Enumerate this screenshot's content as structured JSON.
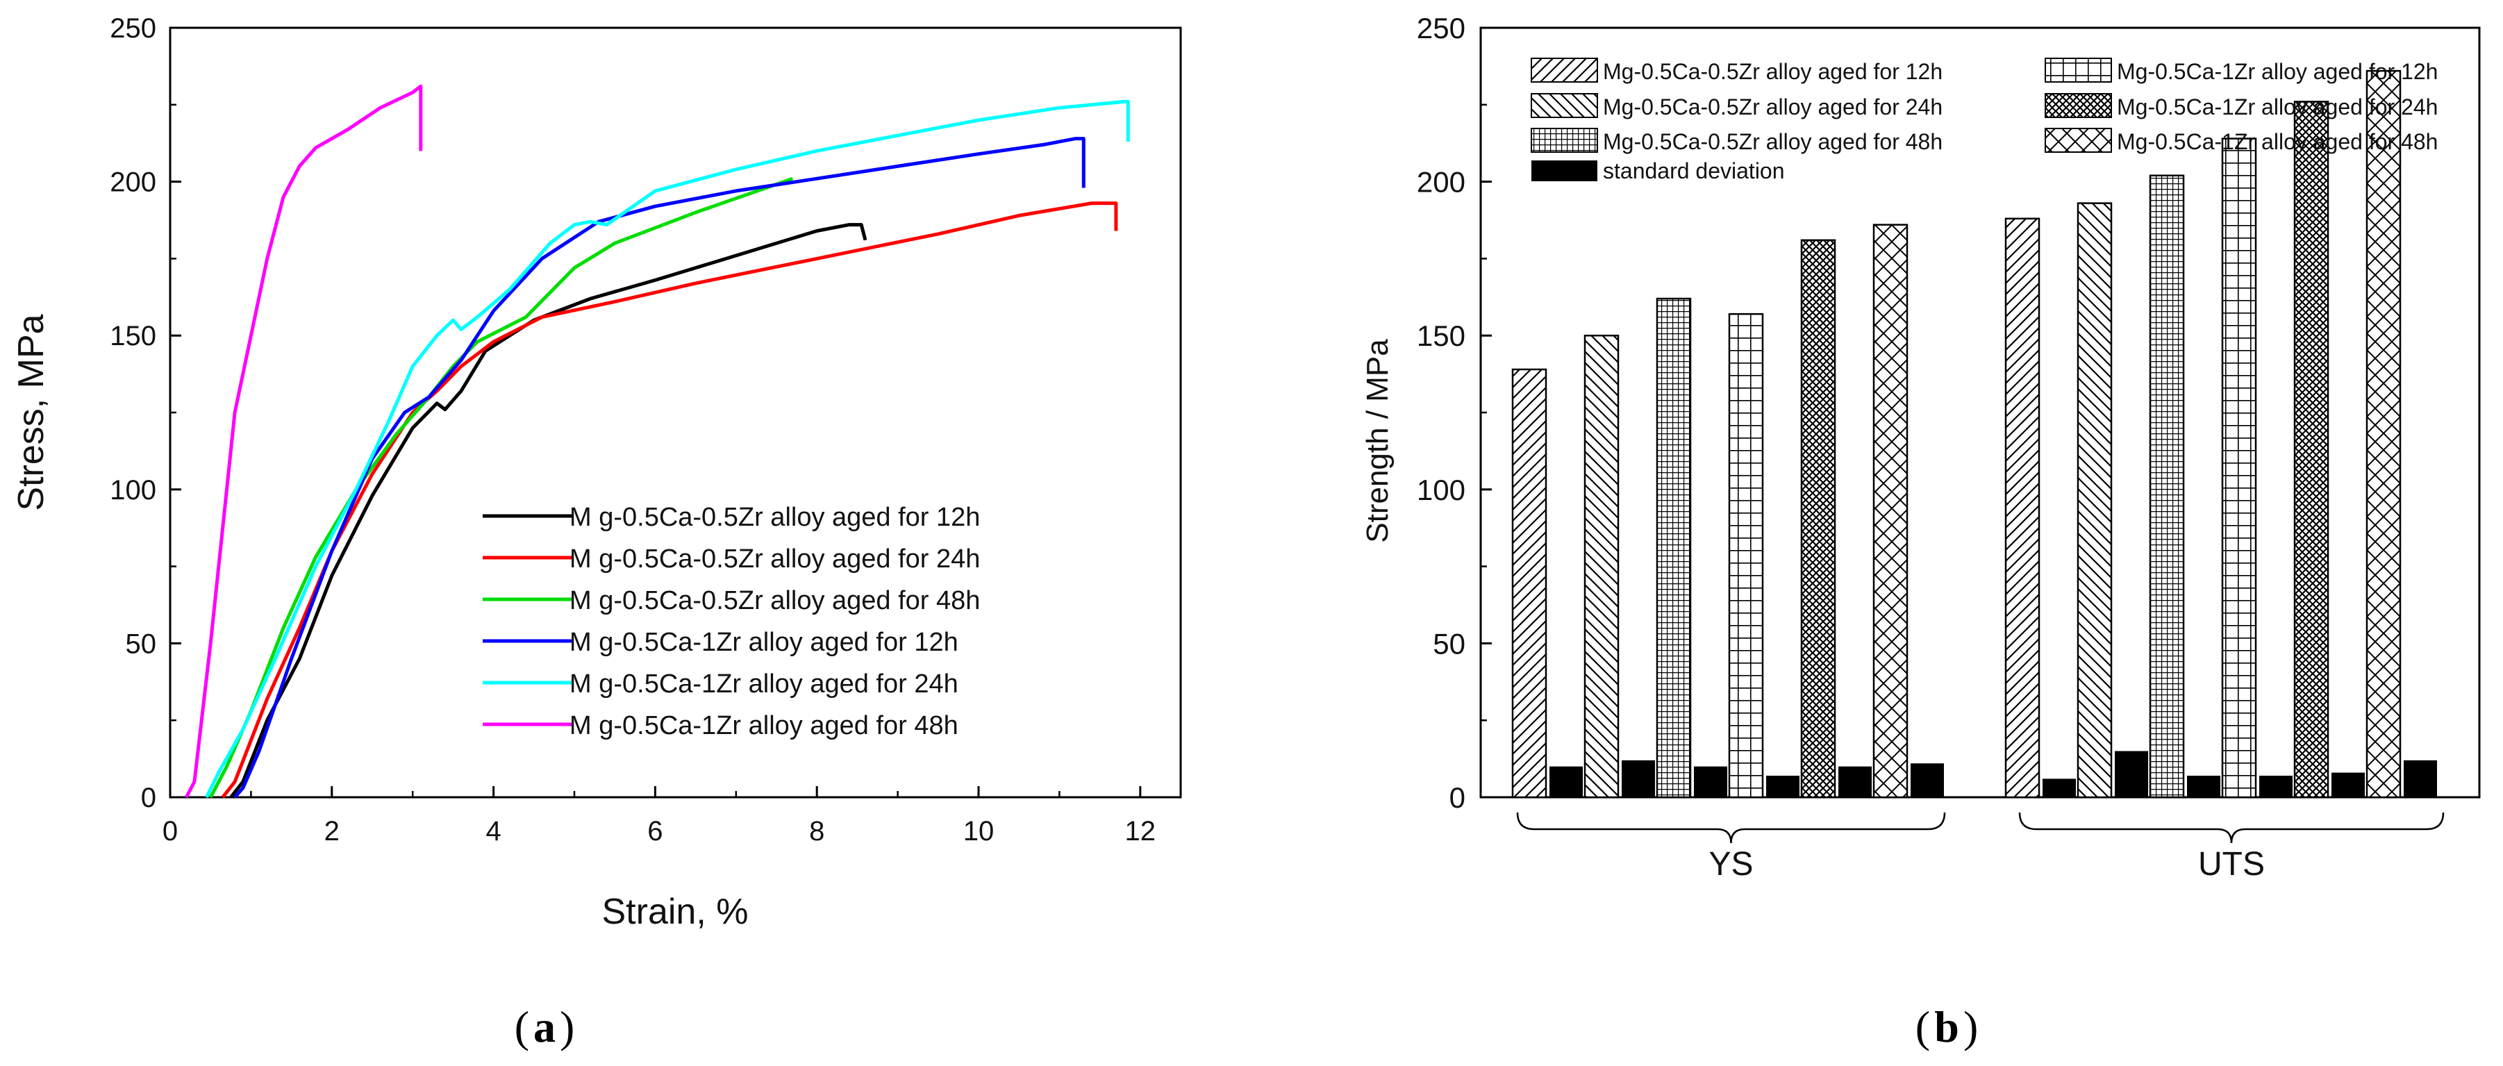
{
  "chart_data": [
    {
      "type": "line",
      "panel": "a",
      "xlabel": "Strain, %",
      "ylabel": "Stress, MPa",
      "xlim": [
        0,
        12.5
      ],
      "ylim": [
        0,
        250
      ],
      "xticks": [
        0,
        2,
        4,
        6,
        8,
        10,
        12
      ],
      "yticks": [
        0,
        50,
        100,
        150,
        200,
        250
      ],
      "legend_position": "bottom-right",
      "series": [
        {
          "name": "M g-0.5Ca-0.5Zr alloy aged for 12h",
          "color": "#000000",
          "points": [
            [
              0.75,
              0
            ],
            [
              0.9,
              5
            ],
            [
              1.2,
              25
            ],
            [
              1.6,
              45
            ],
            [
              2.0,
              72
            ],
            [
              2.5,
              98
            ],
            [
              3.0,
              120
            ],
            [
              3.3,
              128
            ],
            [
              3.4,
              126
            ],
            [
              3.6,
              132
            ],
            [
              3.9,
              145
            ],
            [
              4.5,
              155
            ],
            [
              5.2,
              162
            ],
            [
              6.0,
              168
            ],
            [
              7.0,
              176
            ],
            [
              8.0,
              184
            ],
            [
              8.4,
              186
            ],
            [
              8.55,
              186
            ],
            [
              8.6,
              181
            ]
          ]
        },
        {
          "name": "M g-0.5Ca-0.5Zr alloy aged for 24h",
          "color": "#ff0000",
          "points": [
            [
              0.65,
              0
            ],
            [
              0.8,
              5
            ],
            [
              1.2,
              32
            ],
            [
              1.6,
              55
            ],
            [
              2.0,
              80
            ],
            [
              2.5,
              105
            ],
            [
              3.0,
              125
            ],
            [
              3.3,
              132
            ],
            [
              3.6,
              140
            ],
            [
              4.0,
              148
            ],
            [
              4.6,
              156
            ],
            [
              5.5,
              161
            ],
            [
              6.5,
              167
            ],
            [
              8.0,
              175
            ],
            [
              9.5,
              183
            ],
            [
              10.5,
              189
            ],
            [
              11.4,
              193
            ],
            [
              11.7,
              193
            ],
            [
              11.7,
              184
            ]
          ]
        },
        {
          "name": "M g-0.5Ca-0.5Zr alloy aged for 48h",
          "color": "#00dd00",
          "points": [
            [
              0.5,
              0
            ],
            [
              0.7,
              10
            ],
            [
              1.0,
              28
            ],
            [
              1.4,
              55
            ],
            [
              1.8,
              78
            ],
            [
              2.3,
              100
            ],
            [
              2.8,
              118
            ],
            [
              3.2,
              130
            ],
            [
              3.5,
              140
            ],
            [
              3.8,
              148
            ],
            [
              4.4,
              156
            ],
            [
              5.0,
              172
            ],
            [
              5.5,
              180
            ],
            [
              6.5,
              190
            ],
            [
              7.7,
              201
            ]
          ]
        },
        {
          "name": "M g-0.5Ca-1Zr alloy aged for 12h",
          "color": "#0000ff",
          "points": [
            [
              0.8,
              0
            ],
            [
              0.9,
              3
            ],
            [
              1.1,
              15
            ],
            [
              1.5,
              45
            ],
            [
              2.0,
              80
            ],
            [
              2.5,
              110
            ],
            [
              2.9,
              125
            ],
            [
              3.2,
              130
            ],
            [
              3.6,
              142
            ],
            [
              4.0,
              158
            ],
            [
              4.6,
              175
            ],
            [
              5.3,
              187
            ],
            [
              6.0,
              192
            ],
            [
              7.0,
              197
            ],
            [
              8.0,
              201
            ],
            [
              9.0,
              205
            ],
            [
              10.0,
              209
            ],
            [
              10.8,
              212
            ],
            [
              11.2,
              214
            ],
            [
              11.3,
              214
            ],
            [
              11.3,
              198
            ]
          ]
        },
        {
          "name": "M g-0.5Ca-1Zr alloy aged for 24h",
          "color": "#00ffff",
          "points": [
            [
              0.45,
              0
            ],
            [
              0.6,
              8
            ],
            [
              0.9,
              22
            ],
            [
              1.3,
              45
            ],
            [
              1.8,
              75
            ],
            [
              2.3,
              100
            ],
            [
              2.7,
              122
            ],
            [
              3.0,
              140
            ],
            [
              3.3,
              150
            ],
            [
              3.5,
              155
            ],
            [
              3.6,
              152
            ],
            [
              3.8,
              156
            ],
            [
              4.2,
              165
            ],
            [
              4.7,
              180
            ],
            [
              5.0,
              186
            ],
            [
              5.2,
              187
            ],
            [
              5.4,
              186
            ],
            [
              6.0,
              197
            ],
            [
              7.0,
              204
            ],
            [
              8.0,
              210
            ],
            [
              9.0,
              215
            ],
            [
              10.0,
              220
            ],
            [
              11.0,
              224
            ],
            [
              11.8,
              226
            ],
            [
              11.85,
              226
            ],
            [
              11.85,
              213
            ]
          ]
        },
        {
          "name": "M g-0.5Ca-1Zr alloy aged for 48h",
          "color": "#ff00ff",
          "points": [
            [
              0.2,
              0
            ],
            [
              0.3,
              5
            ],
            [
              0.5,
              50
            ],
            [
              0.7,
              100
            ],
            [
              0.8,
              125
            ],
            [
              1.0,
              150
            ],
            [
              1.2,
              175
            ],
            [
              1.4,
              195
            ],
            [
              1.6,
              205
            ],
            [
              1.8,
              211
            ],
            [
              2.2,
              217
            ],
            [
              2.6,
              224
            ],
            [
              3.0,
              229
            ],
            [
              3.1,
              231
            ],
            [
              3.1,
              210
            ]
          ]
        }
      ]
    },
    {
      "type": "bar",
      "panel": "b",
      "ylabel": "Strength / MPa",
      "ylim": [
        0,
        250
      ],
      "yticks": [
        0,
        50,
        100,
        150,
        200,
        250
      ],
      "legend_position": "top",
      "groups": [
        "YS",
        "UTS"
      ],
      "series": [
        {
          "name": "Mg-0.5Ca-0.5Zr alloy aged for 12h",
          "pattern": "diag-right",
          "values": [
            139,
            188
          ],
          "std": [
            10,
            6
          ]
        },
        {
          "name": "Mg-0.5Ca-0.5Zr alloy aged for 24h",
          "pattern": "diag-left",
          "values": [
            150,
            193
          ],
          "std": [
            12,
            15
          ]
        },
        {
          "name": "Mg-0.5Ca-0.5Zr alloy aged for 48h",
          "pattern": "dense-grid",
          "values": [
            162,
            202
          ],
          "std": [
            10,
            7
          ]
        },
        {
          "name": "Mg-0.5Ca-1Zr alloy aged for 12h",
          "pattern": "grid",
          "values": [
            157,
            214
          ],
          "std": [
            7,
            7
          ]
        },
        {
          "name": "Mg-0.5Ca-1Zr alloy aged for 24h",
          "pattern": "crosshatch-dense",
          "values": [
            181,
            226
          ],
          "std": [
            10,
            8
          ]
        },
        {
          "name": "Mg-0.5Ca-1Zr alloy aged for 48h",
          "pattern": "crosshatch",
          "values": [
            186,
            236
          ],
          "std": [
            11,
            12
          ]
        }
      ],
      "std_label": "standard deviation"
    }
  ],
  "captions": {
    "a": "a",
    "b": "b"
  }
}
